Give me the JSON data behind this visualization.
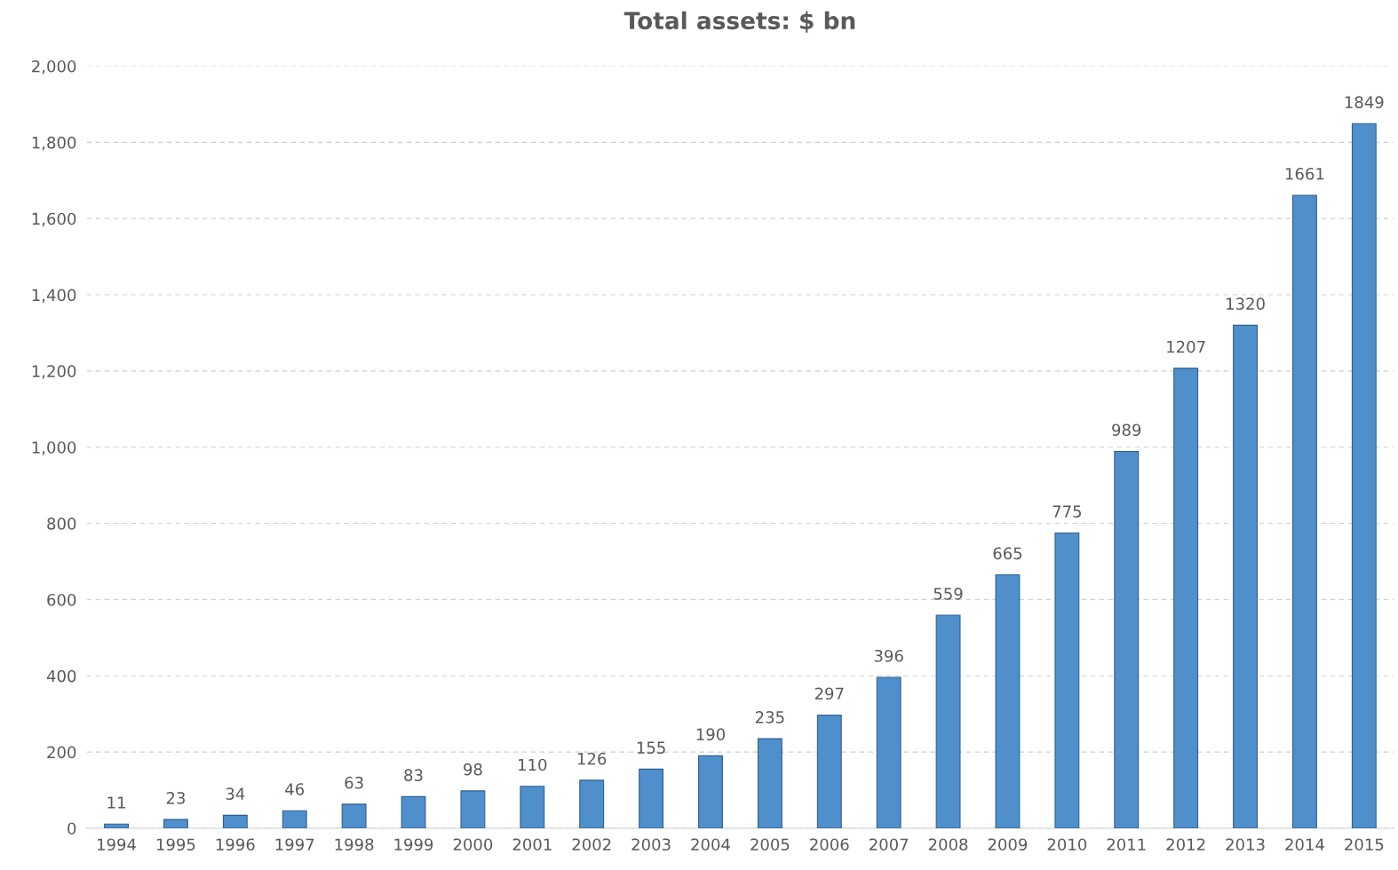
{
  "chart_data": {
    "type": "bar",
    "title": "Total assets: $ bn",
    "categories": [
      "1994",
      "1995",
      "1996",
      "1997",
      "1998",
      "1999",
      "2000",
      "2001",
      "2002",
      "2003",
      "2004",
      "2005",
      "2006",
      "2007",
      "2008",
      "2009",
      "2010",
      "2011",
      "2012",
      "2013",
      "2014",
      "2015"
    ],
    "values": [
      11,
      23,
      34,
      46,
      63,
      83,
      98,
      110,
      126,
      155,
      190,
      235,
      297,
      396,
      559,
      665,
      775,
      989,
      1207,
      1320,
      1661,
      1849
    ],
    "color": "#4f8fcc",
    "ylim": [
      0,
      2000
    ],
    "yticks": [
      0,
      {
        "value": 200,
        "label": "200"
      },
      {
        "value": 400,
        "label": "400"
      },
      {
        "value": 600,
        "label": "600"
      },
      {
        "value": 800,
        "label": "800"
      },
      {
        "value": 1000,
        "label": "1,000"
      },
      {
        "value": 1200,
        "label": "1,200"
      },
      {
        "value": 1400,
        "label": "1,400"
      },
      {
        "value": 1600,
        "label": "1,600"
      },
      {
        "value": 1800,
        "label": "1,800"
      },
      {
        "value": 2000,
        "label": "2,000"
      }
    ],
    "grid": "y",
    "data_labels": true
  }
}
